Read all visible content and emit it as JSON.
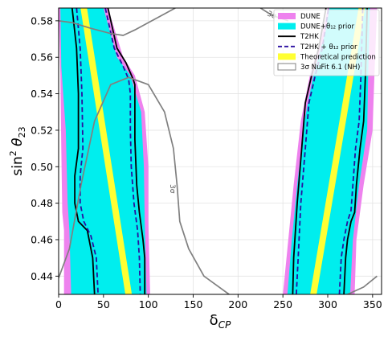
{
  "chart_data": {
    "type": "line",
    "title": "",
    "xlabel": {
      "main": "δ",
      "sub": "CP"
    },
    "ylabel": {
      "main": "sin",
      "sup": "2",
      "symbol": " θ",
      "sub": "23"
    },
    "xlim": [
      0,
      360
    ],
    "ylim": [
      0.43,
      0.587
    ],
    "xticks": [
      0,
      50,
      100,
      150,
      200,
      250,
      300,
      350
    ],
    "yticks": [
      0.44,
      0.46,
      0.48,
      0.5,
      0.52,
      0.54,
      0.56,
      0.58
    ],
    "ytick_labels": [
      "0.44",
      "0.46",
      "0.48",
      "0.50",
      "0.52",
      "0.54",
      "0.56",
      "0.58"
    ],
    "grid": true,
    "legend_position": "top-right",
    "colors": {
      "dune": "#ee82ee",
      "dune_prior": "#00eeee",
      "t2hk": "#000000",
      "t2hk_prior": "#2a0fa0",
      "theory": "#ffff33",
      "nufit": "#808080"
    },
    "legend": [
      {
        "label": "DUNE",
        "type": "patch",
        "color": "#ee82ee"
      },
      {
        "label": "DUNE+θ₁₂ prior",
        "type": "patch",
        "color": "#00eeee"
      },
      {
        "label": "T2HK",
        "type": "solid",
        "color": "#000000"
      },
      {
        "label": "T2HK + θ₁₂ prior",
        "type": "dashed",
        "color": "#2a0fa0"
      },
      {
        "label": "Theoretical prediction",
        "type": "patch",
        "color": "#ffff33"
      },
      {
        "label": "3σ NuFit 6.1 (NH)",
        "type": "hollow",
        "color": "#808080"
      }
    ],
    "annotations": [
      "3σ",
      "3σ"
    ],
    "series": [
      {
        "name": "DUNE",
        "kind": "region",
        "polygons": [
          {
            "left": [
              [
                6,
                0.43
              ],
              [
                6,
                0.465
              ],
              [
                4,
                0.475
              ],
              [
                3,
                0.51
              ],
              [
                2,
                0.55
              ],
              [
                0,
                0.587
              ]
            ],
            "right": [
              [
                102,
                0.43
              ],
              [
                100,
                0.47
              ],
              [
                100,
                0.5
              ],
              [
                96,
                0.53
              ],
              [
                85,
                0.55
              ],
              [
                72,
                0.56
              ],
              [
                55,
                0.587
              ]
            ]
          },
          {
            "left": [
              [
                250,
                0.43
              ],
              [
                256,
                0.46
              ],
              [
                262,
                0.49
              ],
              [
                270,
                0.525
              ],
              [
                280,
                0.55
              ],
              [
                295,
                0.575
              ],
              [
                300,
                0.587
              ]
            ],
            "right": [
              [
                330,
                0.43
              ],
              [
                332,
                0.46
              ],
              [
                340,
                0.49
              ],
              [
                350,
                0.52
              ],
              [
                352,
                0.55
              ],
              [
                355,
                0.587
              ]
            ]
          }
        ]
      },
      {
        "name": "DUNE+θ₁₂ prior",
        "kind": "region",
        "polygons": [
          {
            "left": [
              [
                14,
                0.43
              ],
              [
                12,
                0.465
              ],
              [
                10,
                0.48
              ],
              [
                8,
                0.52
              ],
              [
                3,
                0.555
              ],
              [
                2,
                0.587
              ]
            ],
            "right": [
              [
                98,
                0.43
              ],
              [
                96,
                0.47
              ],
              [
                95,
                0.5
              ],
              [
                92,
                0.53
              ],
              [
                80,
                0.55
              ],
              [
                65,
                0.56
              ],
              [
                50,
                0.587
              ]
            ]
          },
          {
            "left": [
              [
                255,
                0.43
              ],
              [
                260,
                0.46
              ],
              [
                266,
                0.49
              ],
              [
                274,
                0.525
              ],
              [
                284,
                0.55
              ],
              [
                298,
                0.575
              ],
              [
                302,
                0.587
              ]
            ],
            "right": [
              [
                325,
                0.43
              ],
              [
                328,
                0.46
              ],
              [
                335,
                0.49
              ],
              [
                344,
                0.52
              ],
              [
                345,
                0.55
              ],
              [
                347,
                0.587
              ]
            ]
          }
        ]
      },
      {
        "name": "Theoretical prediction",
        "kind": "band",
        "bands": [
          {
            "from": [
              78,
              0.43
            ],
            "to": [
              28,
              0.587
            ],
            "width": 8
          },
          {
            "from": [
              284,
              0.43
            ],
            "to": [
              338,
              0.587
            ],
            "width": 8
          }
        ]
      },
      {
        "name": "T2HK",
        "kind": "contour",
        "lines": [
          [
            [
              15,
              0.587
            ],
            [
              20,
              0.565
            ],
            [
              22,
              0.54
            ],
            [
              22,
              0.51
            ],
            [
              18,
              0.495
            ],
            [
              18,
              0.48
            ],
            [
              22,
              0.47
            ],
            [
              32,
              0.465
            ],
            [
              38,
              0.45
            ],
            [
              40,
              0.43
            ]
          ],
          [
            [
              55,
              0.587
            ],
            [
              65,
              0.565
            ],
            [
              75,
              0.557
            ],
            [
              83,
              0.548
            ],
            [
              85,
              0.545
            ],
            [
              85,
              0.525
            ],
            [
              85,
              0.515
            ],
            [
              87,
              0.49
            ],
            [
              90,
              0.475
            ],
            [
              94,
              0.46
            ],
            [
              96,
              0.45
            ],
            [
              96,
              0.43
            ]
          ],
          [
            [
              261,
              0.43
            ],
            [
              262,
              0.45
            ],
            [
              266,
              0.48
            ],
            [
              271,
              0.51
            ],
            [
              275,
              0.535
            ],
            [
              282,
              0.55
            ],
            [
              290,
              0.565
            ],
            [
              298,
              0.587
            ]
          ],
          [
            [
              318,
              0.43
            ],
            [
              320,
              0.45
            ],
            [
              322,
              0.46
            ],
            [
              326,
              0.47
            ],
            [
              330,
              0.475
            ],
            [
              332,
              0.49
            ],
            [
              336,
              0.51
            ],
            [
              340,
              0.525
            ],
            [
              342,
              0.55
            ],
            [
              344,
              0.587
            ]
          ]
        ]
      },
      {
        "name": "T2HK + θ₁₂ prior",
        "kind": "contour",
        "lines": [
          [
            [
              20,
              0.587
            ],
            [
              24,
              0.565
            ],
            [
              26,
              0.54
            ],
            [
              27,
              0.51
            ],
            [
              24,
              0.495
            ],
            [
              24,
              0.48
            ],
            [
              28,
              0.47
            ],
            [
              36,
              0.462
            ],
            [
              42,
              0.45
            ],
            [
              44,
              0.43
            ]
          ],
          [
            [
              52,
              0.587
            ],
            [
              62,
              0.565
            ],
            [
              72,
              0.555
            ],
            [
              78,
              0.548
            ],
            [
              80,
              0.54
            ],
            [
              80,
              0.52
            ],
            [
              81,
              0.5
            ],
            [
              84,
              0.48
            ],
            [
              88,
              0.465
            ],
            [
              90,
              0.45
            ],
            [
              91,
              0.43
            ]
          ],
          [
            [
              265,
              0.43
            ],
            [
              267,
              0.45
            ],
            [
              270,
              0.48
            ],
            [
              275,
              0.51
            ],
            [
              279,
              0.535
            ],
            [
              286,
              0.55
            ],
            [
              294,
              0.565
            ],
            [
              301,
              0.587
            ]
          ],
          [
            [
              313,
              0.43
            ],
            [
              315,
              0.45
            ],
            [
              318,
              0.46
            ],
            [
              322,
              0.47
            ],
            [
              326,
              0.476
            ],
            [
              328,
              0.49
            ],
            [
              331,
              0.51
            ],
            [
              335,
              0.525
            ],
            [
              337,
              0.55
            ],
            [
              339,
              0.587
            ]
          ]
        ]
      },
      {
        "name": "3σ NuFit 6.1 (NH)",
        "kind": "contour",
        "lines": [
          [
            [
              0,
              0.439
            ],
            [
              12,
              0.455
            ],
            [
              25,
              0.49
            ],
            [
              40,
              0.525
            ],
            [
              58,
              0.545
            ],
            [
              78,
              0.549
            ],
            [
              100,
              0.545
            ],
            [
              118,
              0.53
            ],
            [
              128,
              0.51
            ],
            [
              132,
              0.49
            ],
            [
              135,
              0.47
            ],
            [
              145,
              0.455
            ],
            [
              162,
              0.44
            ],
            [
              190,
              0.43
            ]
          ],
          [
            [
              0,
              0.58
            ],
            [
              15,
              0.579
            ],
            [
              35,
              0.576
            ],
            [
              58,
              0.573
            ],
            [
              72,
              0.572
            ],
            [
              85,
              0.575
            ],
            [
              100,
              0.579
            ],
            [
              115,
              0.583
            ],
            [
              130,
              0.587
            ]
          ],
          [
            [
              225,
              0.587
            ],
            [
              238,
              0.583
            ],
            [
              256,
              0.58
            ]
          ],
          [
            [
              322,
              0.43
            ],
            [
              340,
              0.434
            ],
            [
              355,
              0.44
            ]
          ]
        ]
      }
    ]
  }
}
